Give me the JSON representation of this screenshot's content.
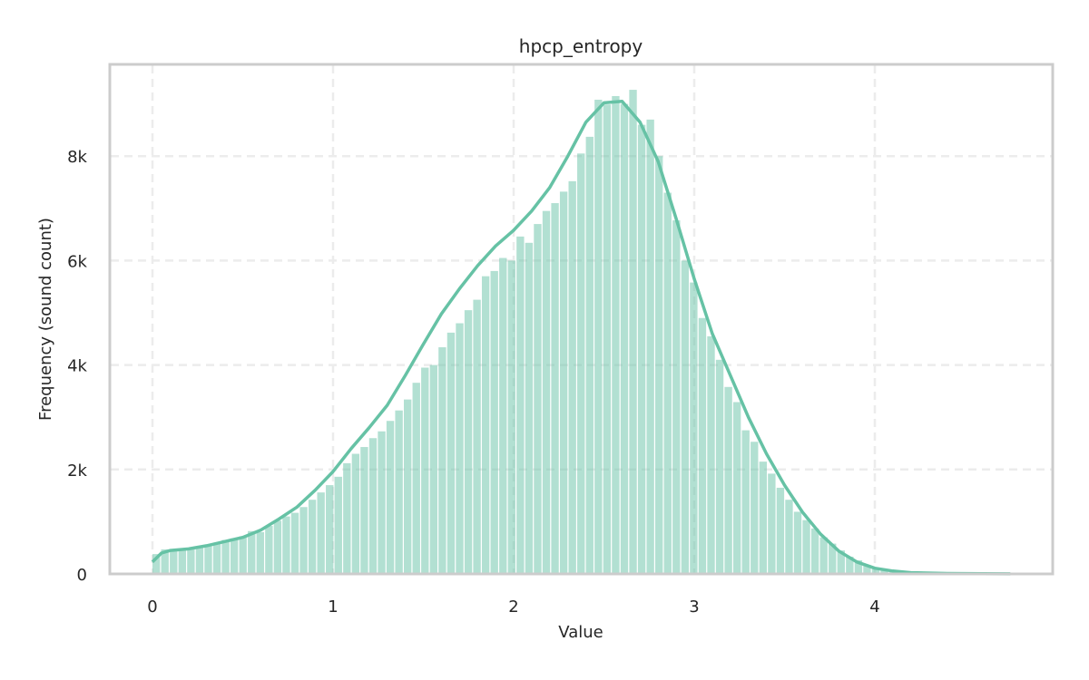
{
  "chart_data": {
    "type": "bar",
    "title": "hpcp_entropy",
    "xlabel": "Value",
    "ylabel": "Frequency (sound count)",
    "xlim": [
      -0.24,
      4.97
    ],
    "ylim": [
      0,
      9800
    ],
    "x_ticks": [
      0,
      1,
      2,
      3,
      4
    ],
    "x_tick_labels": [
      "0",
      "1",
      "2",
      "3",
      "4"
    ],
    "y_ticks": [
      0,
      2000,
      4000,
      6000,
      8000
    ],
    "y_tick_labels": [
      "0",
      "2k",
      "4k",
      "6k",
      "8k"
    ],
    "grid": true,
    "legend": null,
    "bin_start": 0.0,
    "bin_width": 0.048,
    "values": [
      380,
      470,
      460,
      460,
      480,
      510,
      560,
      600,
      650,
      680,
      720,
      820,
      800,
      920,
      1020,
      1100,
      1170,
      1280,
      1420,
      1560,
      1700,
      1860,
      2120,
      2300,
      2430,
      2600,
      2730,
      2930,
      3130,
      3340,
      3660,
      3950,
      4000,
      4340,
      4620,
      4800,
      5050,
      5250,
      5700,
      5800,
      6050,
      6000,
      6460,
      6340,
      6700,
      6950,
      7100,
      7320,
      7520,
      8050,
      8370,
      9080,
      8990,
      9150,
      9000,
      9270,
      8600,
      8700,
      8000,
      7300,
      6770,
      6000,
      5580,
      4900,
      4550,
      4100,
      3580,
      3290,
      2750,
      2530,
      2150,
      1920,
      1650,
      1420,
      1190,
      1030,
      870,
      700,
      580,
      450,
      330,
      260,
      170,
      110,
      75,
      50,
      35,
      25,
      18,
      12,
      8,
      6,
      4,
      3,
      2,
      2,
      1,
      1,
      1
    ],
    "kde": {
      "color": "#66c2a5",
      "points": [
        [
          0.0,
          230
        ],
        [
          0.05,
          400
        ],
        [
          0.1,
          450
        ],
        [
          0.2,
          480
        ],
        [
          0.3,
          540
        ],
        [
          0.4,
          620
        ],
        [
          0.5,
          700
        ],
        [
          0.6,
          840
        ],
        [
          0.7,
          1050
        ],
        [
          0.8,
          1280
        ],
        [
          0.9,
          1600
        ],
        [
          1.0,
          1960
        ],
        [
          1.1,
          2400
        ],
        [
          1.2,
          2800
        ],
        [
          1.3,
          3230
        ],
        [
          1.4,
          3800
        ],
        [
          1.5,
          4400
        ],
        [
          1.6,
          4980
        ],
        [
          1.7,
          5460
        ],
        [
          1.8,
          5900
        ],
        [
          1.9,
          6280
        ],
        [
          2.0,
          6580
        ],
        [
          2.1,
          6950
        ],
        [
          2.2,
          7400
        ],
        [
          2.3,
          8000
        ],
        [
          2.4,
          8650
        ],
        [
          2.5,
          9020
        ],
        [
          2.6,
          9050
        ],
        [
          2.7,
          8650
        ],
        [
          2.8,
          7900
        ],
        [
          2.9,
          6800
        ],
        [
          3.0,
          5650
        ],
        [
          3.1,
          4600
        ],
        [
          3.2,
          3800
        ],
        [
          3.3,
          3000
        ],
        [
          3.4,
          2300
        ],
        [
          3.5,
          1700
        ],
        [
          3.6,
          1180
        ],
        [
          3.7,
          760
        ],
        [
          3.8,
          440
        ],
        [
          3.9,
          230
        ],
        [
          4.0,
          110
        ],
        [
          4.1,
          55
        ],
        [
          4.2,
          25
        ],
        [
          4.4,
          8
        ],
        [
          4.6,
          3
        ],
        [
          4.75,
          1
        ]
      ]
    },
    "bar_color": "#66c2a5"
  }
}
